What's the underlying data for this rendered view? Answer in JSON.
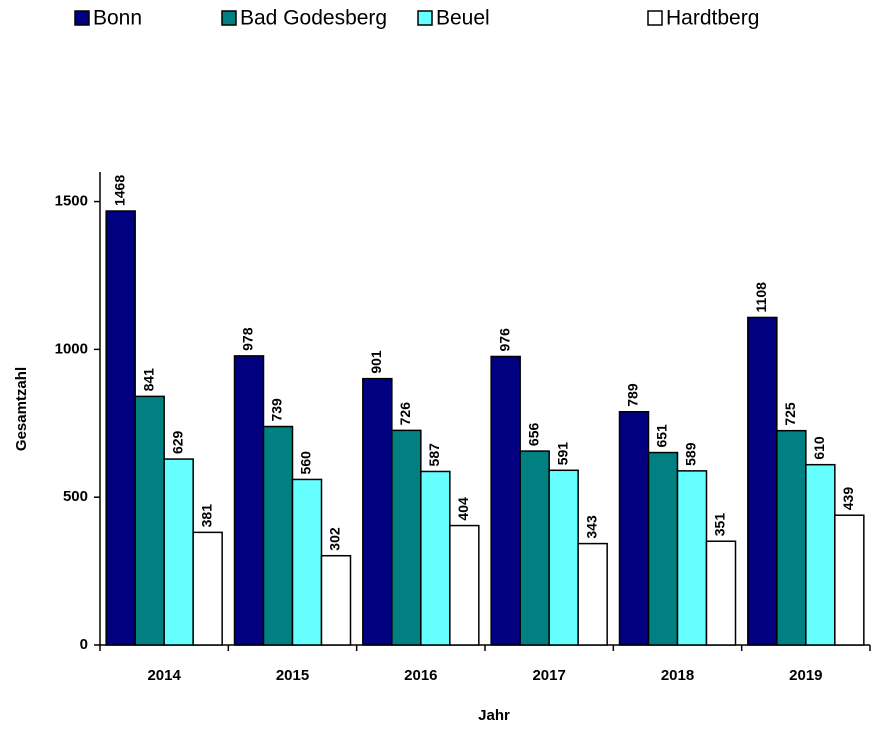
{
  "chart_data": {
    "type": "bar",
    "categories": [
      "2014",
      "2015",
      "2016",
      "2017",
      "2018",
      "2019"
    ],
    "series": [
      {
        "name": "Bonn",
        "color": "#000080",
        "values": [
          1468,
          978,
          901,
          976,
          789,
          1108
        ]
      },
      {
        "name": "Bad Godesberg",
        "color": "#008080",
        "values": [
          841,
          739,
          726,
          656,
          651,
          725
        ]
      },
      {
        "name": "Beuel",
        "color": "#66ffff",
        "values": [
          629,
          560,
          587,
          591,
          589,
          610
        ]
      },
      {
        "name": "Hardtberg",
        "color": "#ffffff",
        "values": [
          381,
          302,
          404,
          343,
          351,
          439
        ]
      }
    ],
    "ylim": [
      0,
      1600
    ],
    "yticks": [
      0,
      500,
      1000,
      1500
    ],
    "xlabel": "Jahr",
    "ylabel": "Gesamtzahl",
    "legend": "top"
  }
}
